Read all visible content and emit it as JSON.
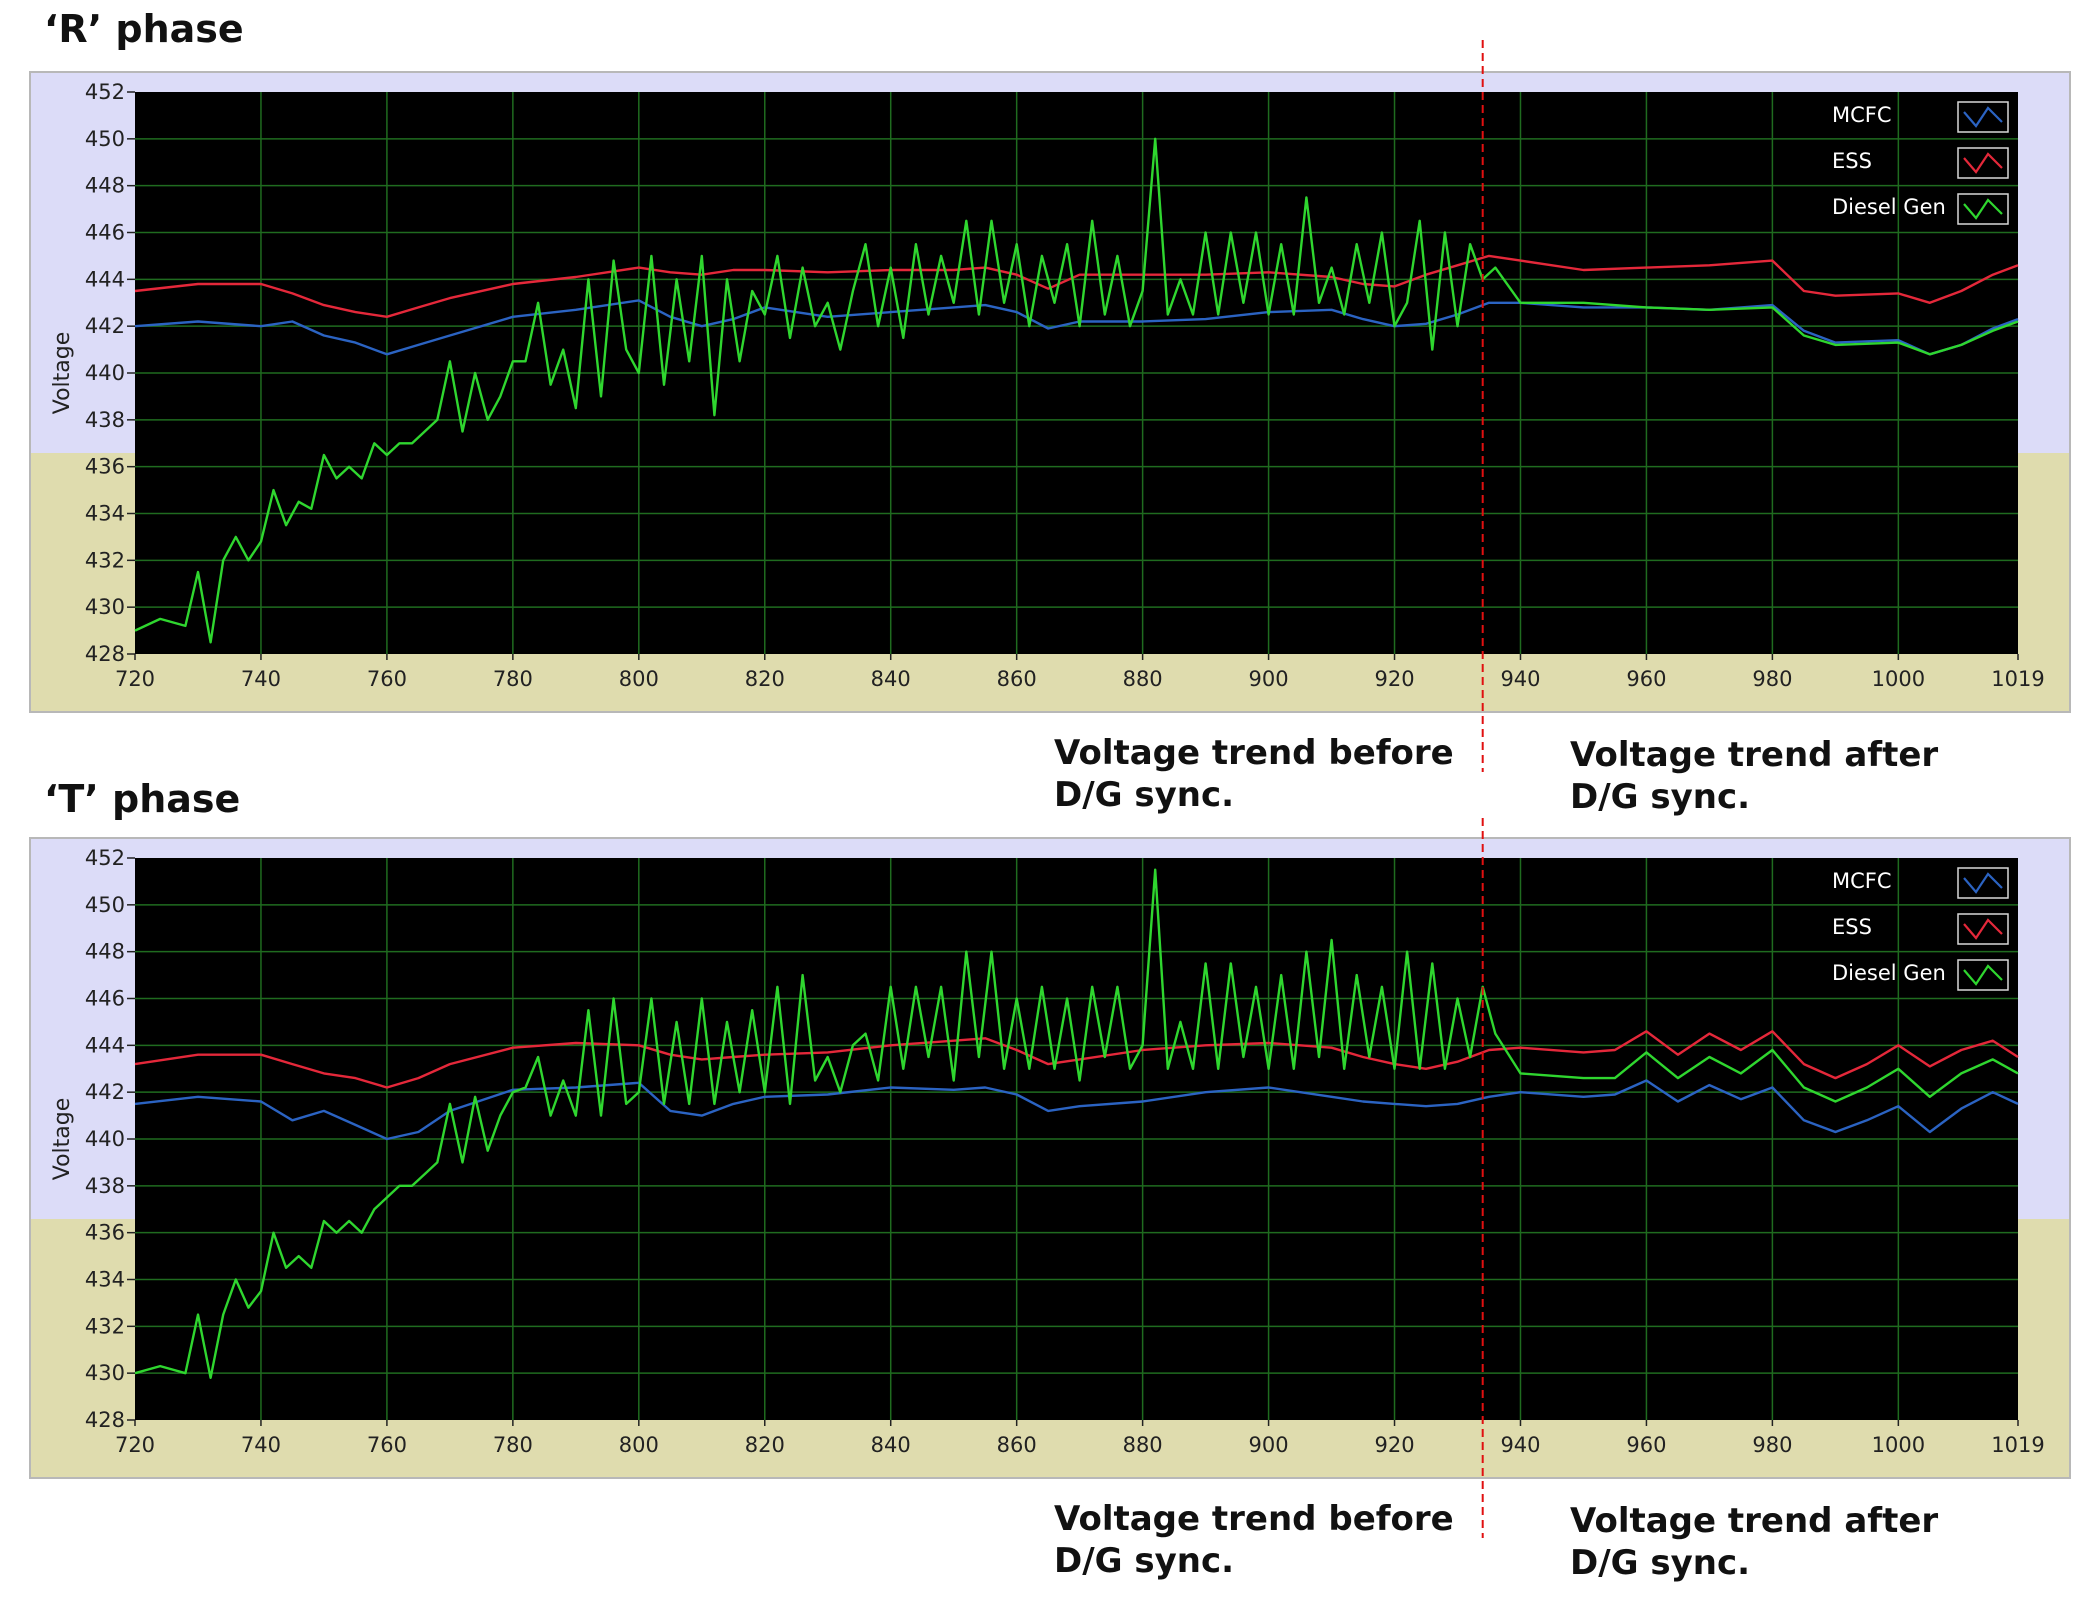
{
  "charts_text": {
    "annotation_before_l1": "Voltage trend before",
    "annotation_before_l2": "D/G sync.",
    "annotation_after_l1": "Voltage trend after",
    "annotation_after_l2": "D/G sync."
  },
  "colors": {
    "plot_bg": "#000000",
    "grid": "#1f6b1f",
    "frame_upper": "#dcdcf8",
    "frame_lower": "#dfdcae",
    "mcfc": "#2b63c2",
    "ess": "#e4283a",
    "diesel": "#2fd62f",
    "sync_line": "#e01010"
  },
  "chart_data": [
    {
      "type": "line",
      "title": "‘R’ phase",
      "xlabel": "",
      "ylabel": "Voltage",
      "xlim": [
        720,
        1019
      ],
      "ylim": [
        428,
        452
      ],
      "xticks": [
        720,
        740,
        760,
        780,
        800,
        820,
        840,
        860,
        880,
        900,
        920,
        940,
        960,
        980,
        1000,
        1019
      ],
      "yticks": [
        428,
        430,
        432,
        434,
        436,
        438,
        440,
        442,
        444,
        446,
        448,
        450,
        452
      ],
      "grid": true,
      "legend_position": "top-right",
      "sync_x": 934,
      "series": [
        {
          "name": "MCFC",
          "x": [
            720,
            730,
            740,
            745,
            750,
            755,
            760,
            765,
            770,
            780,
            790,
            800,
            805,
            810,
            815,
            820,
            830,
            840,
            850,
            855,
            860,
            865,
            870,
            880,
            890,
            900,
            910,
            915,
            920,
            925,
            930,
            935,
            940,
            950,
            960,
            970,
            980,
            985,
            990,
            1000,
            1005,
            1010,
            1015,
            1019
          ],
          "y": [
            442,
            442.2,
            442,
            442.2,
            441.6,
            441.3,
            440.8,
            441.2,
            441.6,
            442.4,
            442.7,
            443.1,
            442.4,
            442,
            442.3,
            442.8,
            442.4,
            442.6,
            442.8,
            442.9,
            442.6,
            441.9,
            442.2,
            442.2,
            442.3,
            442.6,
            442.7,
            442.3,
            442,
            442.1,
            442.5,
            443,
            443,
            442.8,
            442.8,
            442.7,
            442.9,
            441.8,
            441.3,
            441.4,
            440.8,
            441.2,
            441.9,
            442.3
          ]
        },
        {
          "name": "ESS",
          "x": [
            720,
            730,
            740,
            745,
            750,
            755,
            760,
            765,
            770,
            780,
            790,
            800,
            805,
            810,
            815,
            820,
            830,
            840,
            850,
            855,
            860,
            865,
            870,
            880,
            890,
            900,
            910,
            915,
            920,
            925,
            930,
            935,
            940,
            950,
            960,
            970,
            980,
            985,
            990,
            1000,
            1005,
            1010,
            1015,
            1019
          ],
          "y": [
            443.5,
            443.8,
            443.8,
            443.4,
            442.9,
            442.6,
            442.4,
            442.8,
            443.2,
            443.8,
            444.1,
            444.5,
            444.3,
            444.2,
            444.4,
            444.4,
            444.3,
            444.4,
            444.4,
            444.5,
            444.2,
            443.6,
            444.2,
            444.2,
            444.2,
            444.3,
            444.1,
            443.8,
            443.7,
            444.2,
            444.6,
            445,
            444.8,
            444.4,
            444.5,
            444.6,
            444.8,
            443.5,
            443.3,
            443.4,
            443,
            443.5,
            444.2,
            444.6
          ]
        },
        {
          "name": "Diesel Gen",
          "x": [
            720,
            724,
            728,
            730,
            732,
            734,
            736,
            738,
            740,
            742,
            744,
            746,
            748,
            750,
            752,
            754,
            756,
            758,
            760,
            762,
            764,
            766,
            768,
            770,
            772,
            774,
            776,
            778,
            780,
            782,
            784,
            786,
            788,
            790,
            792,
            794,
            796,
            798,
            800,
            802,
            804,
            806,
            808,
            810,
            812,
            814,
            816,
            818,
            820,
            822,
            824,
            826,
            828,
            830,
            832,
            834,
            836,
            838,
            840,
            842,
            844,
            846,
            848,
            850,
            852,
            854,
            856,
            858,
            860,
            862,
            864,
            866,
            868,
            870,
            872,
            874,
            876,
            878,
            880,
            882,
            884,
            886,
            888,
            890,
            892,
            894,
            896,
            898,
            900,
            902,
            904,
            906,
            908,
            910,
            912,
            914,
            916,
            918,
            920,
            922,
            924,
            926,
            928,
            930,
            932,
            934,
            936,
            940,
            950,
            960,
            970,
            980,
            985,
            990,
            1000,
            1005,
            1010,
            1015,
            1019
          ],
          "y": [
            429,
            429.5,
            429.2,
            431.5,
            428.5,
            432,
            433,
            432,
            432.8,
            435,
            433.5,
            434.5,
            434.2,
            436.5,
            435.5,
            436,
            435.5,
            437,
            436.5,
            437,
            437,
            437.5,
            438,
            440.5,
            437.5,
            440,
            438,
            439,
            440.5,
            440.5,
            443,
            439.5,
            441,
            438.5,
            444,
            439,
            444.8,
            441,
            440,
            445,
            439.5,
            444,
            440.5,
            445,
            438.2,
            444,
            440.5,
            443.5,
            442.5,
            445,
            441.5,
            444.5,
            442,
            443,
            441,
            443.5,
            445.5,
            442,
            444.5,
            441.5,
            445.5,
            442.5,
            445,
            443,
            446.5,
            442.5,
            446.5,
            443,
            445.5,
            442,
            445,
            443,
            445.5,
            442,
            446.5,
            442.5,
            445,
            442,
            443.5,
            450,
            442.5,
            444,
            442.5,
            446,
            442.5,
            446,
            443,
            446,
            442.5,
            445.5,
            442.5,
            447.5,
            443,
            444.5,
            442.5,
            445.5,
            443,
            446,
            442,
            443,
            446.5,
            441,
            446,
            442,
            445.5,
            444,
            444.5,
            443,
            443,
            442.8,
            442.7,
            442.8,
            441.6,
            441.2,
            441.3,
            440.8,
            441.2,
            441.8,
            442.2
          ]
        }
      ]
    },
    {
      "type": "line",
      "title": "‘T’ phase",
      "xlabel": "",
      "ylabel": "Voltage",
      "xlim": [
        720,
        1019
      ],
      "ylim": [
        428,
        452
      ],
      "xticks": [
        720,
        740,
        760,
        780,
        800,
        820,
        840,
        860,
        880,
        900,
        920,
        940,
        960,
        980,
        1000,
        1019
      ],
      "yticks": [
        428,
        430,
        432,
        434,
        436,
        438,
        440,
        442,
        444,
        446,
        448,
        450,
        452
      ],
      "grid": true,
      "legend_position": "top-right",
      "sync_x": 934,
      "series": [
        {
          "name": "MCFC",
          "x": [
            720,
            730,
            740,
            745,
            750,
            755,
            760,
            765,
            770,
            780,
            790,
            800,
            805,
            810,
            815,
            820,
            830,
            840,
            850,
            855,
            860,
            865,
            870,
            880,
            890,
            900,
            910,
            915,
            920,
            925,
            930,
            935,
            940,
            950,
            955,
            960,
            965,
            970,
            975,
            980,
            985,
            990,
            995,
            1000,
            1005,
            1010,
            1015,
            1019
          ],
          "y": [
            441.5,
            441.8,
            441.6,
            440.8,
            441.2,
            440.6,
            440,
            440.3,
            441.2,
            442.1,
            442.2,
            442.4,
            441.2,
            441,
            441.5,
            441.8,
            441.9,
            442.2,
            442.1,
            442.2,
            441.9,
            441.2,
            441.4,
            441.6,
            442,
            442.2,
            441.8,
            441.6,
            441.5,
            441.4,
            441.5,
            441.8,
            442,
            441.8,
            441.9,
            442.5,
            441.6,
            442.3,
            441.7,
            442.2,
            440.8,
            440.3,
            440.8,
            441.4,
            440.3,
            441.3,
            442,
            441.5
          ]
        },
        {
          "name": "ESS",
          "x": [
            720,
            730,
            740,
            745,
            750,
            755,
            760,
            765,
            770,
            780,
            790,
            800,
            805,
            810,
            815,
            820,
            830,
            840,
            850,
            855,
            860,
            865,
            870,
            880,
            890,
            900,
            910,
            915,
            920,
            925,
            930,
            935,
            940,
            950,
            955,
            960,
            965,
            970,
            975,
            980,
            985,
            990,
            995,
            1000,
            1005,
            1010,
            1015,
            1019
          ],
          "y": [
            443.2,
            443.6,
            443.6,
            443.2,
            442.8,
            442.6,
            442.2,
            442.6,
            443.2,
            443.9,
            444.1,
            444,
            443.6,
            443.4,
            443.5,
            443.6,
            443.7,
            444,
            444.2,
            444.3,
            443.8,
            443.2,
            443.4,
            443.8,
            444,
            444.1,
            443.9,
            443.5,
            443.2,
            443,
            443.3,
            443.8,
            443.9,
            443.7,
            443.8,
            444.6,
            443.6,
            444.5,
            443.8,
            444.6,
            443.2,
            442.6,
            443.2,
            444,
            443.1,
            443.8,
            444.2,
            443.5
          ]
        },
        {
          "name": "Diesel Gen",
          "x": [
            720,
            724,
            728,
            730,
            732,
            734,
            736,
            738,
            740,
            742,
            744,
            746,
            748,
            750,
            752,
            754,
            756,
            758,
            760,
            762,
            764,
            766,
            768,
            770,
            772,
            774,
            776,
            778,
            780,
            782,
            784,
            786,
            788,
            790,
            792,
            794,
            796,
            798,
            800,
            802,
            804,
            806,
            808,
            810,
            812,
            814,
            816,
            818,
            820,
            822,
            824,
            826,
            828,
            830,
            832,
            834,
            836,
            838,
            840,
            842,
            844,
            846,
            848,
            850,
            852,
            854,
            856,
            858,
            860,
            862,
            864,
            866,
            868,
            870,
            872,
            874,
            876,
            878,
            880,
            882,
            884,
            886,
            888,
            890,
            892,
            894,
            896,
            898,
            900,
            902,
            904,
            906,
            908,
            910,
            912,
            914,
            916,
            918,
            920,
            922,
            924,
            926,
            928,
            930,
            932,
            934,
            936,
            940,
            950,
            955,
            960,
            965,
            970,
            975,
            980,
            985,
            990,
            995,
            1000,
            1005,
            1010,
            1015,
            1019
          ],
          "y": [
            430,
            430.3,
            430,
            432.5,
            429.8,
            432.5,
            434,
            432.8,
            433.5,
            436,
            434.5,
            435,
            434.5,
            436.5,
            436,
            436.5,
            436,
            437,
            437.5,
            438,
            438,
            438.5,
            439,
            441.5,
            439,
            441.8,
            439.5,
            441,
            442,
            442.2,
            443.5,
            441,
            442.5,
            441,
            445.5,
            441,
            446,
            441.5,
            442,
            446,
            441.5,
            445,
            441.5,
            446,
            441.5,
            445,
            442,
            445.5,
            442,
            446.5,
            441.5,
            447,
            442.5,
            443.5,
            442,
            444,
            444.5,
            442.5,
            446.5,
            443,
            446.5,
            443.5,
            446.5,
            442.5,
            448,
            443.5,
            448,
            443,
            446,
            443,
            446.5,
            443,
            446,
            442.5,
            446.5,
            443.5,
            446.5,
            443,
            444,
            451.5,
            443,
            445,
            443,
            447.5,
            443,
            447.5,
            443.5,
            446.5,
            443,
            447,
            443,
            448,
            443.5,
            448.5,
            443,
            447,
            443.5,
            446.5,
            443,
            448,
            443,
            447.5,
            443,
            446,
            443.5,
            446.5,
            444.5,
            442.8,
            442.6,
            442.6,
            443.7,
            442.6,
            443.5,
            442.8,
            443.8,
            442.2,
            441.6,
            442.2,
            443,
            441.8,
            442.8,
            443.4,
            442.8
          ]
        }
      ]
    }
  ]
}
